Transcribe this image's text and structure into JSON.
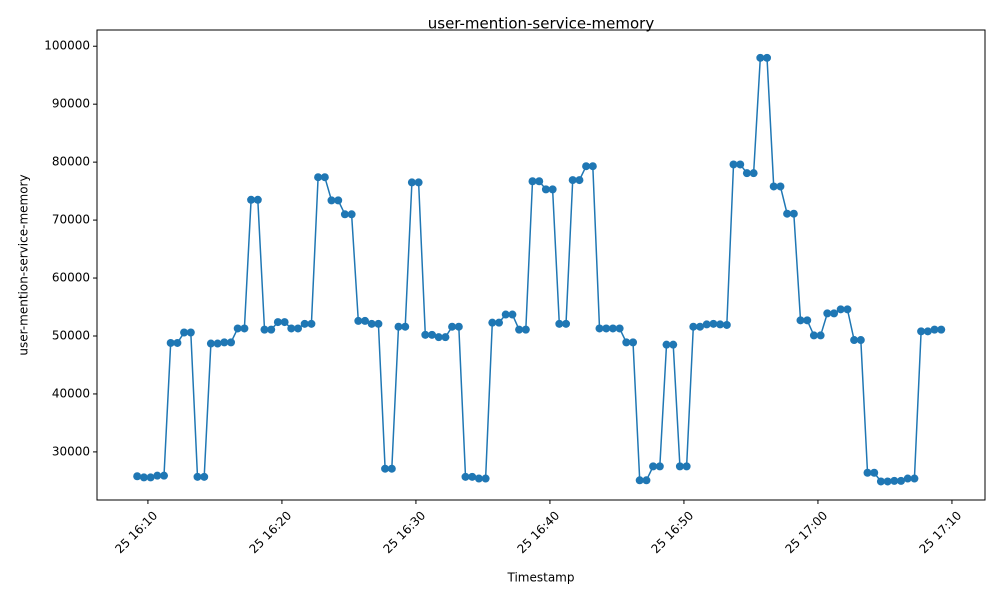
{
  "chart_data": {
    "type": "line",
    "title": "user-mention-service-memory",
    "x_label": "Timestamp",
    "y_label": "user-mention-service-memory",
    "color": "#1f77b4",
    "x": [
      "25 16:09:12",
      "25 16:09:42",
      "25 16:10:12",
      "25 16:10:42",
      "25 16:11:12",
      "25 16:11:42",
      "25 16:12:12",
      "25 16:12:42",
      "25 16:13:12",
      "25 16:13:42",
      "25 16:14:12",
      "25 16:14:42",
      "25 16:15:12",
      "25 16:15:42",
      "25 16:16:12",
      "25 16:16:42",
      "25 16:17:12",
      "25 16:17:42",
      "25 16:18:12",
      "25 16:18:42",
      "25 16:19:12",
      "25 16:19:42",
      "25 16:20:12",
      "25 16:20:42",
      "25 16:21:12",
      "25 16:21:42",
      "25 16:22:12",
      "25 16:22:42",
      "25 16:23:12",
      "25 16:23:42",
      "25 16:24:12",
      "25 16:24:42",
      "25 16:25:12",
      "25 16:25:42",
      "25 16:26:12",
      "25 16:26:42",
      "25 16:27:12",
      "25 16:27:42",
      "25 16:28:12",
      "25 16:28:42",
      "25 16:29:12",
      "25 16:29:42",
      "25 16:30:12",
      "25 16:30:42",
      "25 16:31:12",
      "25 16:31:42",
      "25 16:32:12",
      "25 16:32:42",
      "25 16:33:12",
      "25 16:33:42",
      "25 16:34:12",
      "25 16:34:42",
      "25 16:35:12",
      "25 16:35:42",
      "25 16:36:12",
      "25 16:36:42",
      "25 16:37:12",
      "25 16:37:42",
      "25 16:38:12",
      "25 16:38:42",
      "25 16:39:12",
      "25 16:39:42",
      "25 16:40:12",
      "25 16:40:42",
      "25 16:41:12",
      "25 16:41:42",
      "25 16:42:12",
      "25 16:42:42",
      "25 16:43:12",
      "25 16:43:42",
      "25 16:44:12",
      "25 16:44:42",
      "25 16:45:12",
      "25 16:45:42",
      "25 16:46:12",
      "25 16:46:42",
      "25 16:47:12",
      "25 16:47:42",
      "25 16:48:12",
      "25 16:48:42",
      "25 16:49:12",
      "25 16:49:42",
      "25 16:50:12",
      "25 16:50:42",
      "25 16:51:12",
      "25 16:51:42",
      "25 16:52:12",
      "25 16:52:42",
      "25 16:53:12",
      "25 16:53:42",
      "25 16:54:12",
      "25 16:54:42",
      "25 16:55:12",
      "25 16:55:42",
      "25 16:56:12",
      "25 16:56:42",
      "25 16:57:12",
      "25 16:57:42",
      "25 16:58:12",
      "25 16:58:42",
      "25 16:59:12",
      "25 16:59:42",
      "25 17:00:12",
      "25 17:00:42",
      "25 17:01:12",
      "25 17:01:42",
      "25 17:02:12",
      "25 17:02:42",
      "25 17:03:12",
      "25 17:03:42",
      "25 17:04:12",
      "25 17:04:42",
      "25 17:05:12",
      "25 17:05:42",
      "25 17:06:12",
      "25 17:06:42",
      "25 17:07:12",
      "25 17:07:42",
      "25 17:08:12",
      "25 17:08:42",
      "25 17:09:12"
    ],
    "values": [
      25800,
      25600,
      25600,
      25900,
      25900,
      48800,
      48800,
      50600,
      50600,
      25700,
      25700,
      48700,
      48700,
      48900,
      48900,
      51300,
      51300,
      73500,
      73500,
      51100,
      51100,
      52400,
      52400,
      51300,
      51300,
      52100,
      52100,
      77400,
      77400,
      73400,
      73400,
      71000,
      71000,
      52600,
      52600,
      52100,
      52100,
      27100,
      27100,
      51600,
      51600,
      76500,
      76500,
      50200,
      50200,
      49800,
      49800,
      51600,
      51600,
      25700,
      25700,
      25400,
      25400,
      52300,
      52300,
      53700,
      53700,
      51100,
      51100,
      76700,
      76700,
      75300,
      75300,
      52100,
      52100,
      76900,
      76900,
      79300,
      79300,
      51300,
      51300,
      51300,
      51300,
      48900,
      48900,
      25100,
      25100,
      27500,
      27500,
      48500,
      48500,
      27500,
      27500,
      51600,
      51600,
      52000,
      52100,
      52000,
      51900,
      79600,
      79600,
      78100,
      78100,
      98000,
      98000,
      75800,
      75800,
      71100,
      71100,
      52700,
      52700,
      50100,
      50100,
      53900,
      53900,
      54600,
      54600,
      49300,
      49300,
      26400,
      26400,
      24900,
      24900,
      25000,
      25000,
      25400,
      25400,
      50800,
      50800,
      51100,
      51100
    ],
    "xlim": [
      "25 16:06:12",
      "25 17:12:28"
    ],
    "xticks": [
      "25 16:10",
      "25 16:20",
      "25 16:30",
      "25 16:40",
      "25 16:50",
      "25 17:00",
      "25 17:10"
    ],
    "ylim": [
      21700,
      102800
    ],
    "yticks": [
      30000,
      40000,
      50000,
      60000,
      70000,
      80000,
      90000,
      100000
    ]
  }
}
